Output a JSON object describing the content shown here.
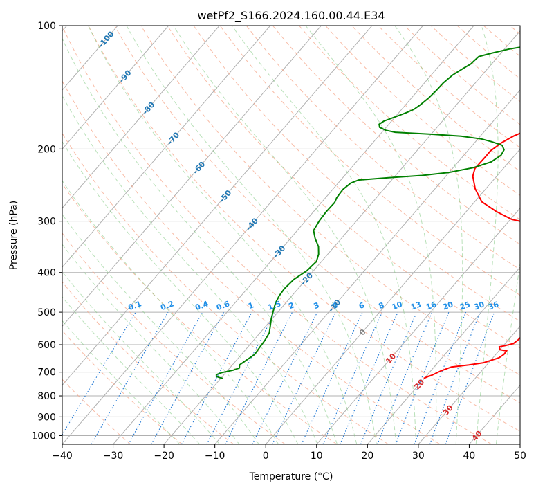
{
  "chart_data": {
    "type": "line",
    "subtype": "skew-t log-p diagram",
    "title": "wetPf2_S166.2024.160.00.44.E34",
    "xlabel": "Temperature (°C)",
    "ylabel": "Pressure (hPa)",
    "xlim": [
      -40,
      50
    ],
    "ylim": [
      1050,
      100
    ],
    "y_scale": "log",
    "x_ticks": [
      -40,
      -30,
      -20,
      -10,
      0,
      10,
      20,
      30,
      40,
      50
    ],
    "y_ticks": [
      100,
      200,
      300,
      400,
      500,
      600,
      700,
      800,
      900,
      1000
    ],
    "grid": true,
    "series": [
      {
        "color": "#ff0000",
        "role": "temperature",
        "points": [
          [
            19.9,
            725
          ],
          [
            20.5,
            717
          ],
          [
            21.0,
            712
          ],
          [
            22.0,
            695
          ],
          [
            23.4,
            680
          ],
          [
            26.5,
            672
          ],
          [
            29.0,
            664
          ],
          [
            31.2,
            646
          ],
          [
            31.6,
            634
          ],
          [
            31.5,
            621
          ],
          [
            30.0,
            617
          ],
          [
            29.4,
            607
          ],
          [
            30.4,
            603
          ],
          [
            31.6,
            596
          ],
          [
            31.9,
            586
          ],
          [
            32.0,
            573
          ],
          [
            32.5,
            566
          ],
          [
            33.0,
            560
          ],
          [
            35.0,
            555
          ],
          [
            37.5,
            542
          ],
          [
            39.5,
            534
          ],
          [
            41.6,
            528
          ],
          [
            44.1,
            518
          ],
          [
            44.9,
            508
          ],
          [
            45.3,
            494
          ],
          [
            45.9,
            474
          ],
          [
            45.8,
            452
          ],
          [
            46.7,
            435
          ],
          [
            46.5,
            416
          ],
          [
            45.2,
            404
          ],
          [
            42.2,
            386
          ],
          [
            37.1,
            364
          ],
          [
            31.7,
            343
          ],
          [
            24.3,
            322
          ],
          [
            16.0,
            306
          ],
          [
            10.3,
            297
          ],
          [
            5.9,
            284
          ],
          [
            1.4,
            269
          ],
          [
            -2.1,
            250
          ],
          [
            -4.7,
            233
          ],
          [
            -5.6,
            223
          ],
          [
            -5.5,
            209
          ],
          [
            -5.5,
            202
          ],
          [
            -4.7,
            193
          ],
          [
            -3.5,
            186
          ],
          [
            -1.8,
            180
          ],
          [
            -0.4,
            171
          ],
          [
            0.0,
            161
          ],
          [
            1.6,
            151
          ],
          [
            3.2,
            145
          ],
          [
            6.1,
            136
          ],
          [
            8.9,
            128
          ],
          [
            10.0,
            122
          ],
          [
            10.5,
            116
          ],
          [
            11.0,
            110
          ],
          [
            11.9,
            105
          ],
          [
            13.4,
            100
          ]
        ]
      },
      {
        "color": "#008000",
        "role": "dewpoint",
        "points": [
          [
            -19.6,
            725
          ],
          [
            -20.4,
            722
          ],
          [
            -21.2,
            717
          ],
          [
            -21.5,
            710
          ],
          [
            -20.8,
            702
          ],
          [
            -18.9,
            692
          ],
          [
            -18.1,
            684
          ],
          [
            -18.6,
            672
          ],
          [
            -17.9,
            650
          ],
          [
            -17.4,
            634
          ],
          [
            -17.6,
            610
          ],
          [
            -17.8,
            584
          ],
          [
            -18.2,
            561
          ],
          [
            -19.2,
            539
          ],
          [
            -20.2,
            518
          ],
          [
            -21.2,
            494
          ],
          [
            -22.0,
            475
          ],
          [
            -22.5,
            456
          ],
          [
            -22.7,
            438
          ],
          [
            -22.4,
            416
          ],
          [
            -21.3,
            396
          ],
          [
            -21.0,
            376
          ],
          [
            -21.8,
            361
          ],
          [
            -23.1,
            346
          ],
          [
            -25.2,
            330
          ],
          [
            -26.8,
            316
          ],
          [
            -27.3,
            300
          ],
          [
            -27.5,
            285
          ],
          [
            -27.4,
            270
          ],
          [
            -27.8,
            263
          ],
          [
            -28.0,
            251
          ],
          [
            -27.5,
            242
          ],
          [
            -26.5,
            238
          ],
          [
            -21.0,
            235
          ],
          [
            -14.8,
            232
          ],
          [
            -10.0,
            228
          ],
          [
            -6.0,
            222
          ],
          [
            -3.5,
            215
          ],
          [
            -2.7,
            207
          ],
          [
            -3.0,
            201
          ],
          [
            -4.1,
            196
          ],
          [
            -6.8,
            192
          ],
          [
            -9.3,
            189
          ],
          [
            -13.8,
            186
          ],
          [
            -20.1,
            184
          ],
          [
            -27.4,
            182
          ],
          [
            -29.6,
            180
          ],
          [
            -31.3,
            177
          ],
          [
            -31.9,
            174
          ],
          [
            -31.5,
            171
          ],
          [
            -30.0,
            167
          ],
          [
            -28.5,
            163
          ],
          [
            -27.6,
            160
          ],
          [
            -27.1,
            156
          ],
          [
            -26.6,
            150
          ],
          [
            -26.4,
            144
          ],
          [
            -26.3,
            138
          ],
          [
            -25.8,
            132
          ],
          [
            -24.8,
            127
          ],
          [
            -24.1,
            124
          ],
          [
            -24.0,
            122
          ],
          [
            -23.8,
            119
          ],
          [
            -22.1,
            117
          ],
          [
            -19.0,
            114
          ],
          [
            -15.7,
            112
          ],
          [
            -12.4,
            110
          ],
          [
            -9.9,
            108
          ],
          [
            -7.8,
            106
          ],
          [
            -5.0,
            103
          ],
          [
            -3.0,
            100
          ]
        ]
      }
    ],
    "dry_adiabat_labels": [
      "-100",
      "-90",
      "-80",
      "-70",
      "-60",
      "-50",
      "-40",
      "-30",
      "-20",
      "-10",
      "0",
      "10",
      "20",
      "30",
      "40"
    ],
    "mixing_ratio_labels": [
      "0.1",
      "0.2",
      "0.4",
      "0.6",
      "1",
      "1.5",
      "2",
      "3",
      "4",
      "6",
      "8",
      "10",
      "13",
      "16",
      "20",
      "25",
      "30",
      "36"
    ]
  }
}
